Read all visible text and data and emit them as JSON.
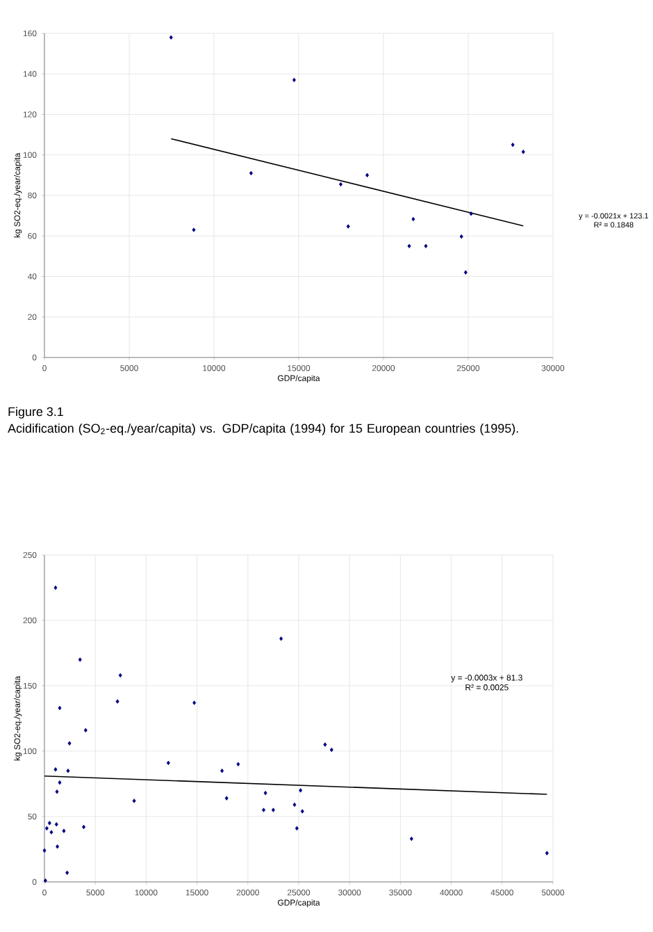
{
  "chart_data": [
    {
      "type": "scatter",
      "xlabel": "GDP/capita",
      "ylabel": "kg SO2-eq./year/capita",
      "xlim": [
        0,
        30000
      ],
      "xticks": [
        0,
        5000,
        10000,
        15000,
        20000,
        25000,
        30000
      ],
      "ylim": [
        0,
        160
      ],
      "yticks": [
        0,
        20,
        40,
        60,
        80,
        100,
        120,
        140,
        160
      ],
      "grid": true,
      "marker": "diamond",
      "series": [
        {
          "color": "#000080",
          "x": [
            7470,
            14730,
            8810,
            12190,
            17480,
            17920,
            19040,
            21760,
            21520,
            22500,
            24600,
            24850,
            25170,
            27630,
            28250
          ],
          "values": [
            158,
            137,
            63,
            91,
            85.5,
            64.7,
            90,
            68.3,
            55,
            55,
            59.7,
            42,
            71,
            105,
            101.5
          ]
        },
        {
          "type": "line",
          "color": "#000000",
          "marker": "none",
          "x": [
            7470,
            28250
          ],
          "values": [
            108,
            65
          ]
        }
      ],
      "annotations": [
        "y = -0.0021x + 123.1",
        "R² = 0.1848",
        "Figure 3.1",
        "Acidification (SO$_{2}$-eq./year/capita) vs. GDP/capita (1994) for 15 European countries (1995)."
      ]
    },
    {
      "type": "scatter",
      "xlabel": "GDP/capita",
      "ylabel": "kg SO2-eq./year/capita",
      "xlim": [
        0,
        50000
      ],
      "xticks": [
        0,
        5000,
        10000,
        15000,
        20000,
        25000,
        30000,
        35000,
        40000,
        45000,
        50000
      ],
      "ylim": [
        0,
        250
      ],
      "yticks": [
        0,
        50,
        100,
        150,
        200,
        250
      ],
      "grid": true,
      "marker": "diamond",
      "series": [
        {
          "color": "#000080",
          "x": [
            1090,
            3500,
            7460,
            7180,
            14730,
            23270,
            1500,
            4050,
            2460,
            1090,
            2320,
            1500,
            1230,
            500,
            230,
            680,
            1180,
            1910,
            3860,
            1270,
            0,
            2230,
            90,
            12180,
            8820,
            17460,
            19050,
            17910,
            21730,
            21550,
            22500,
            24590,
            25180,
            24820,
            25360,
            27590,
            28230,
            36090,
            49410
          ],
          "values": [
            225,
            170,
            158,
            138,
            137,
            186,
            133,
            116,
            106,
            86,
            85,
            76,
            69,
            45,
            41,
            38,
            44,
            39,
            42,
            27,
            24,
            7,
            1,
            91,
            62,
            85,
            90,
            64,
            68,
            55,
            55,
            59,
            70,
            41,
            54,
            105,
            101,
            33,
            22
          ]
        },
        {
          "type": "line",
          "color": "#000000",
          "marker": "none",
          "x": [
            0,
            49410
          ],
          "values": [
            81,
            67
          ]
        }
      ],
      "annotations": [
        "y = -0.0003x + 81.3",
        "R² = 0.0025"
      ]
    }
  ]
}
